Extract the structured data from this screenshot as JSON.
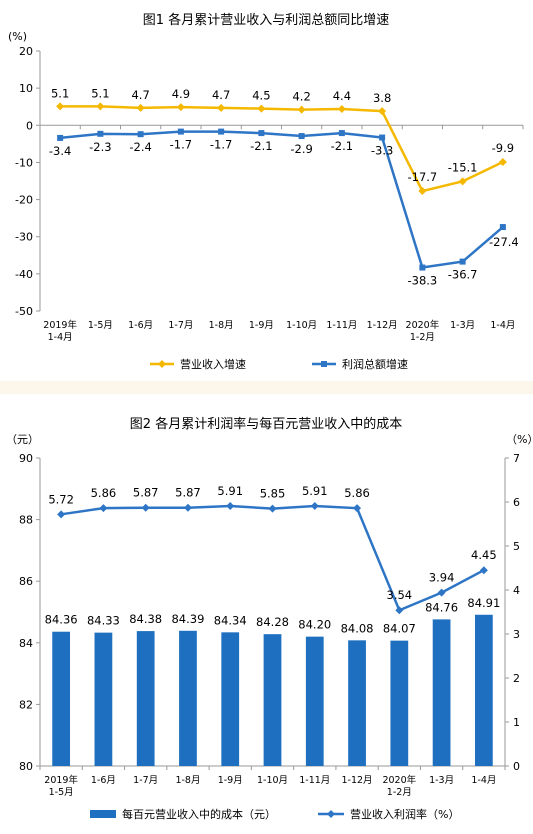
{
  "chart_data": [
    {
      "type": "line",
      "title": "图1  各月累计营业收入与利润总额同比增速",
      "ylabel": "(%)",
      "ylim": [
        -50,
        20
      ],
      "yticks": [
        20,
        10,
        0,
        -10,
        -20,
        -30,
        -40,
        -50
      ],
      "categories": [
        [
          "2019年",
          "1-4月"
        ],
        [
          "1-5月"
        ],
        [
          "1-6月"
        ],
        [
          "1-7月"
        ],
        [
          "1-8月"
        ],
        [
          "1-9月"
        ],
        [
          "1-10月"
        ],
        [
          "1-11月"
        ],
        [
          "1-12月"
        ],
        [
          "2020年",
          "1-2月"
        ],
        [
          "1-3月"
        ],
        [
          "1-4月"
        ]
      ],
      "series": [
        {
          "name": "营业收入增速",
          "color": "#f5b800",
          "marker": "diamond",
          "values": [
            5.1,
            5.1,
            4.7,
            4.9,
            4.7,
            4.5,
            4.2,
            4.4,
            3.8,
            -17.7,
            -15.1,
            -9.9
          ],
          "labels": [
            "5.1",
            "5.1",
            "4.7",
            "4.9",
            "4.7",
            "4.5",
            "4.2",
            "4.4",
            "3.8",
            "-17.7",
            "-15.1",
            "-9.9"
          ]
        },
        {
          "name": "利润总额增速",
          "color": "#2e75c6",
          "marker": "square",
          "values": [
            -3.4,
            -2.3,
            -2.4,
            -1.7,
            -1.7,
            -2.1,
            -2.9,
            -2.1,
            -3.3,
            -38.3,
            -36.7,
            -27.4
          ],
          "labels": [
            "-3.4",
            "-2.3",
            "-2.4",
            "-1.7",
            "-1.7",
            "-2.1",
            "-2.9",
            "-2.1",
            "-3.3",
            "-38.3",
            "-36.7",
            "-27.4"
          ]
        }
      ],
      "legend": "bottom",
      "grid": false
    },
    {
      "type": "bar+line",
      "title": "图2  各月累计利润率与每百元营业收入中的成本",
      "ylabel_left": "（元）",
      "ylabel_right": "（%）",
      "ylim_left": [
        80,
        90
      ],
      "yticks_left": [
        90,
        88,
        86,
        84,
        82,
        80
      ],
      "ylim_right": [
        0,
        7
      ],
      "yticks_right": [
        7,
        6,
        5,
        4,
        3,
        2,
        1,
        0
      ],
      "categories": [
        [
          "2019年",
          "1-5月"
        ],
        [
          "1-6月"
        ],
        [
          "1-7月"
        ],
        [
          "1-8月"
        ],
        [
          "1-9月"
        ],
        [
          "1-10月"
        ],
        [
          "1-11月"
        ],
        [
          "1-12月"
        ],
        [
          "2020年",
          "1-2月"
        ],
        [
          "1-3月"
        ],
        [
          "1-4月"
        ]
      ],
      "bars": {
        "name": "每百元营业收入中的成本（元）",
        "color": "#1e6fc0",
        "values": [
          84.36,
          84.33,
          84.38,
          84.39,
          84.34,
          84.28,
          84.2,
          84.08,
          84.07,
          84.76,
          84.91
        ],
        "labels": [
          "84.36",
          "84.33",
          "84.38",
          "84.39",
          "84.34",
          "84.28",
          "84.20",
          "84.08",
          "84.07",
          "84.76",
          "84.91"
        ]
      },
      "line": {
        "name": "营业收入利润率（%）",
        "color": "#2e75c6",
        "marker": "diamond",
        "values": [
          5.72,
          5.86,
          5.87,
          5.87,
          5.91,
          5.85,
          5.91,
          5.86,
          3.54,
          3.94,
          4.45
        ],
        "labels": [
          "5.72",
          "5.86",
          "5.87",
          "5.87",
          "5.91",
          "5.85",
          "5.91",
          "5.86",
          "3.54",
          "3.94",
          "4.45"
        ]
      },
      "legend": "bottom",
      "grid": false
    }
  ]
}
